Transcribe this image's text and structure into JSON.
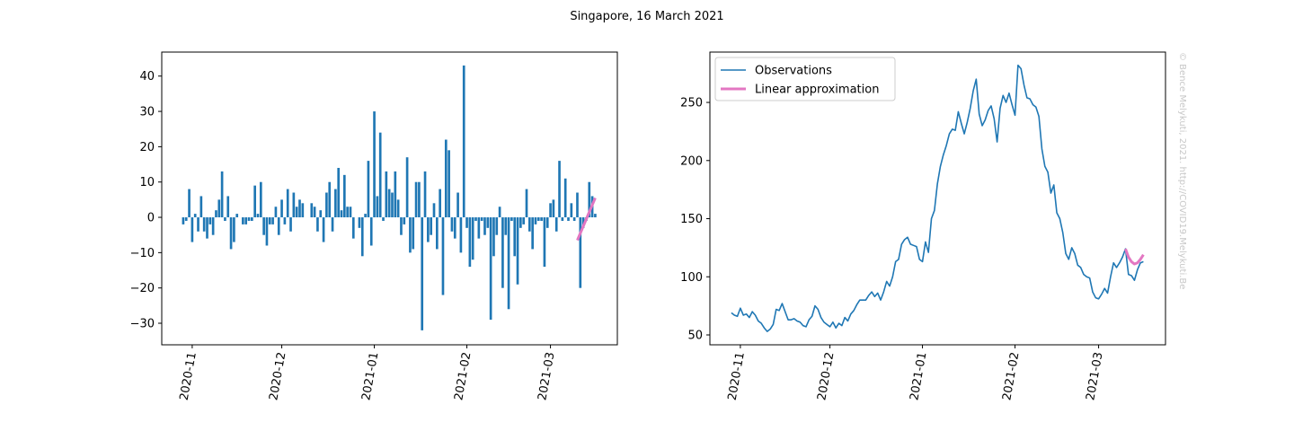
{
  "title": "Singapore, 16 March 2021",
  "watermark": "© Bence Melykuti, 2021. http://COVID19.Melykuti.Be",
  "chart_data": [
    {
      "type": "bar",
      "categories": [
        null,
        null,
        null,
        null,
        null,
        null,
        null,
        null,
        null,
        null,
        null,
        null,
        null,
        null,
        null,
        null,
        null,
        null,
        null,
        null,
        null,
        null,
        null,
        null,
        null,
        null,
        null,
        null,
        null,
        null,
        null,
        null,
        null,
        null,
        null,
        null,
        null,
        null,
        null,
        null,
        null,
        null,
        null,
        null,
        null,
        null,
        null,
        null,
        null,
        null,
        null,
        null,
        null,
        null,
        null,
        null,
        null,
        null,
        null,
        null,
        null,
        null,
        null,
        null,
        null,
        null,
        null,
        null,
        null,
        null,
        null,
        null,
        null,
        null,
        null,
        null,
        null,
        null,
        null,
        null,
        null,
        null,
        null,
        null,
        null,
        null,
        null,
        null,
        null,
        null,
        null,
        null,
        null,
        null,
        null,
        null,
        null,
        null,
        null,
        null,
        null,
        null,
        null,
        null,
        null,
        null,
        null,
        null,
        null,
        null,
        null,
        null,
        null,
        null,
        null,
        null,
        null,
        null,
        null,
        null,
        null,
        null,
        null,
        null,
        null,
        null,
        null,
        null,
        null,
        null,
        null,
        null,
        null,
        null,
        null,
        null,
        null,
        null,
        null
      ],
      "series": [
        {
          "type": "bar",
          "color": "#1f77b4",
          "values": [
            -2,
            -1,
            8,
            -7,
            1,
            -4,
            6,
            -4,
            -6,
            -2,
            -5,
            2,
            5,
            13,
            -1,
            6,
            -9,
            -7,
            1,
            0,
            -2,
            -2,
            -1,
            -1,
            9,
            1,
            10,
            -5,
            -8,
            -2,
            -2,
            3,
            -5,
            5,
            -2,
            8,
            -4,
            7,
            3,
            5,
            4,
            0,
            0,
            4,
            3,
            -4,
            2,
            -7,
            7,
            10,
            -4,
            8,
            14,
            2,
            12,
            3,
            3,
            -6,
            0,
            -3,
            -11,
            1,
            16,
            -8,
            30,
            6,
            24,
            -1,
            13,
            8,
            7,
            13,
            5,
            -5,
            -2,
            17,
            -10,
            -9,
            10,
            10,
            -32,
            13,
            -7,
            -5,
            4,
            -9,
            8,
            -22,
            22,
            19,
            -4,
            -6,
            7,
            -10,
            43,
            -3,
            -14,
            -12,
            -1,
            -6,
            -1,
            -5,
            -3,
            -29,
            -11,
            -5,
            3,
            -20,
            -5,
            -26,
            -1,
            -11,
            -19,
            -3,
            -2,
            8,
            -4,
            -9,
            -2,
            -1,
            -1,
            -14,
            -3,
            4,
            5,
            -4,
            16,
            -1,
            11,
            -1,
            4,
            -1,
            7,
            -20,
            -3,
            -1,
            10,
            6,
            1
          ]
        },
        {
          "type": "line",
          "color": "#e377c2",
          "values": [
            null,
            null,
            null,
            null,
            null,
            null,
            null,
            null,
            null,
            null,
            null,
            null,
            null,
            null,
            null,
            null,
            null,
            null,
            null,
            null,
            null,
            null,
            null,
            null,
            null,
            null,
            null,
            null,
            null,
            null,
            null,
            null,
            null,
            null,
            null,
            null,
            null,
            null,
            null,
            null,
            null,
            null,
            null,
            null,
            null,
            null,
            null,
            null,
            null,
            null,
            null,
            null,
            null,
            null,
            null,
            null,
            null,
            null,
            null,
            null,
            null,
            null,
            null,
            null,
            null,
            null,
            null,
            null,
            null,
            null,
            null,
            null,
            null,
            null,
            null,
            null,
            null,
            null,
            null,
            null,
            null,
            null,
            null,
            null,
            null,
            null,
            null,
            null,
            null,
            null,
            null,
            null,
            null,
            null,
            null,
            null,
            null,
            null,
            null,
            null,
            null,
            null,
            null,
            null,
            null,
            null,
            null,
            null,
            null,
            null,
            null,
            null,
            null,
            null,
            null,
            null,
            null,
            null,
            null,
            null,
            null,
            null,
            null,
            null,
            null,
            null,
            null,
            null,
            null,
            null,
            null,
            null,
            -6.5,
            -4.5,
            -2.5,
            -0.5,
            1.5,
            3.5,
            5.5
          ]
        }
      ],
      "xlim": [
        -7.2,
        145.4
      ],
      "xticks": [
        {
          "value": 3,
          "label": "2020-11"
        },
        {
          "value": 33,
          "label": "2020-12"
        },
        {
          "value": 64,
          "label": "2021-01"
        },
        {
          "value": 95,
          "label": "2021-02"
        },
        {
          "value": 123,
          "label": "2021-03"
        }
      ],
      "ylim": [
        -36.1,
        46.8
      ],
      "yticks": [
        {
          "value": -30,
          "label": "−30"
        },
        {
          "value": -20,
          "label": "−20"
        },
        {
          "value": -10,
          "label": "−10"
        },
        0,
        10,
        20,
        30,
        40
      ]
    },
    {
      "type": "line",
      "categories": [
        null,
        null,
        null,
        null,
        null,
        null,
        null,
        null,
        null,
        null,
        null,
        null,
        null,
        null,
        null,
        null,
        null,
        null,
        null,
        null,
        null,
        null,
        null,
        null,
        null,
        null,
        null,
        null,
        null,
        null,
        null,
        null,
        null,
        null,
        null,
        null,
        null,
        null,
        null,
        null,
        null,
        null,
        null,
        null,
        null,
        null,
        null,
        null,
        null,
        null,
        null,
        null,
        null,
        null,
        null,
        null,
        null,
        null,
        null,
        null,
        null,
        null,
        null,
        null,
        null,
        null,
        null,
        null,
        null,
        null,
        null,
        null,
        null,
        null,
        null,
        null,
        null,
        null,
        null,
        null,
        null,
        null,
        null,
        null,
        null,
        null,
        null,
        null,
        null,
        null,
        null,
        null,
        null,
        null,
        null,
        null,
        null,
        null,
        null,
        null,
        null,
        null,
        null,
        null,
        null,
        null,
        null,
        null,
        null,
        null,
        null,
        null,
        null,
        null,
        null,
        null,
        null,
        null,
        null,
        null,
        null,
        null,
        null,
        null,
        null,
        null,
        null,
        null,
        null,
        null,
        null,
        null,
        null,
        null,
        null,
        null,
        null,
        null,
        null
      ],
      "series": [
        {
          "name": "Observations",
          "type": "line",
          "color": "#1f77b4",
          "values": [
            69,
            67,
            66,
            73,
            67,
            68,
            65,
            70,
            67,
            62,
            60,
            56,
            53,
            55,
            59,
            72,
            71,
            77,
            70,
            63,
            63,
            64,
            62,
            61,
            58,
            57,
            63,
            66,
            75,
            72,
            65,
            61,
            59,
            57,
            61,
            56,
            60,
            58,
            65,
            62,
            68,
            71,
            76,
            80,
            80,
            80,
            84,
            87,
            83,
            86,
            80,
            87,
            96,
            92,
            100,
            113,
            115,
            128,
            132,
            134,
            128,
            127,
            126,
            115,
            113,
            130,
            121,
            150,
            157,
            180,
            195,
            205,
            213,
            223,
            227,
            226,
            242,
            232,
            223,
            233,
            245,
            260,
            270,
            240,
            230,
            235,
            243,
            247,
            236,
            216,
            245,
            256,
            250,
            258,
            248,
            239,
            282,
            279,
            265,
            254,
            253,
            248,
            246,
            238,
            210,
            195,
            190,
            172,
            179,
            155,
            150,
            138,
            120,
            115,
            125,
            120,
            110,
            108,
            102,
            100,
            99,
            87,
            82,
            81,
            85,
            90,
            86,
            100,
            112,
            108,
            112,
            117,
            124,
            102,
            101,
            97,
            106,
            112,
            113
          ]
        },
        {
          "name": "Linear approximation",
          "type": "line",
          "color": "#e377c2",
          "width": 3,
          "values": [
            null,
            null,
            null,
            null,
            null,
            null,
            null,
            null,
            null,
            null,
            null,
            null,
            null,
            null,
            null,
            null,
            null,
            null,
            null,
            null,
            null,
            null,
            null,
            null,
            null,
            null,
            null,
            null,
            null,
            null,
            null,
            null,
            null,
            null,
            null,
            null,
            null,
            null,
            null,
            null,
            null,
            null,
            null,
            null,
            null,
            null,
            null,
            null,
            null,
            null,
            null,
            null,
            null,
            null,
            null,
            null,
            null,
            null,
            null,
            null,
            null,
            null,
            null,
            null,
            null,
            null,
            null,
            null,
            null,
            null,
            null,
            null,
            null,
            null,
            null,
            null,
            null,
            null,
            null,
            null,
            null,
            null,
            null,
            null,
            null,
            null,
            null,
            null,
            null,
            null,
            null,
            null,
            null,
            null,
            null,
            null,
            null,
            null,
            null,
            null,
            null,
            null,
            null,
            null,
            null,
            null,
            null,
            null,
            null,
            null,
            null,
            null,
            null,
            null,
            null,
            null,
            null,
            null,
            null,
            null,
            null,
            null,
            null,
            null,
            null,
            null,
            null,
            null,
            null,
            null,
            null,
            null,
            124,
            117,
            113,
            111,
            112,
            115,
            119
          ]
        }
      ],
      "legend": "upper left",
      "xlim": [
        -7.2,
        145.4
      ],
      "xticks": [
        {
          "value": 3,
          "label": "2020-11"
        },
        {
          "value": 33,
          "label": "2020-12"
        },
        {
          "value": 64,
          "label": "2021-01"
        },
        {
          "value": 95,
          "label": "2021-02"
        },
        {
          "value": 123,
          "label": "2021-03"
        }
      ],
      "ylim": [
        41.5,
        293.3
      ],
      "yticks": [
        50,
        100,
        150,
        200,
        250
      ]
    }
  ]
}
